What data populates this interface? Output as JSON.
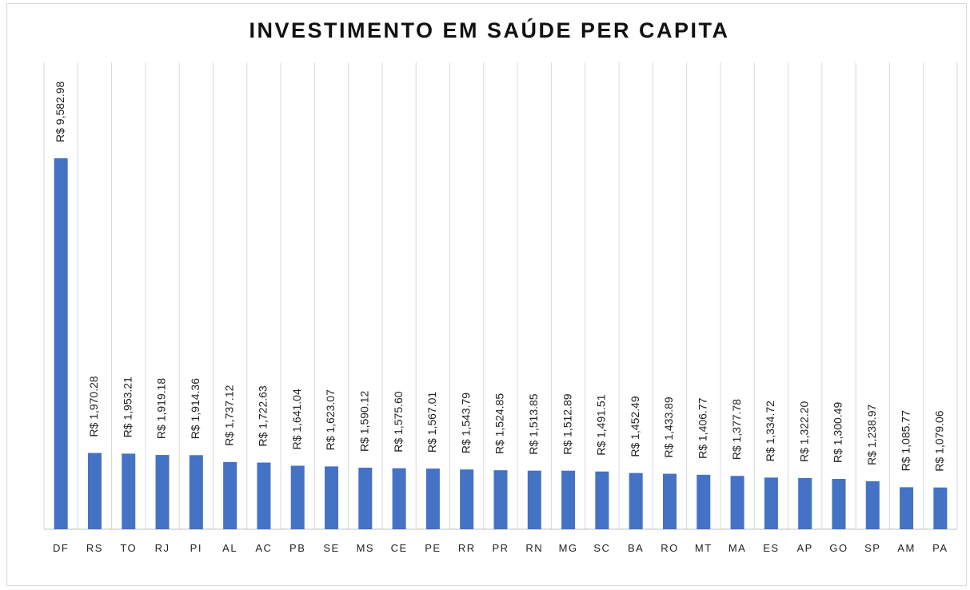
{
  "chart_data": {
    "type": "bar",
    "title": "INVESTIMENTO EM SAÚDE PER CAPITA",
    "categories": [
      "DF",
      "RS",
      "TO",
      "RJ",
      "PI",
      "AL",
      "AC",
      "PB",
      "SE",
      "MS",
      "CE",
      "PE",
      "RR",
      "PR",
      "RN",
      "MG",
      "SC",
      "BA",
      "RO",
      "MT",
      "MA",
      "ES",
      "AP",
      "GO",
      "SP",
      "AM",
      "PA"
    ],
    "values": [
      9582.98,
      1970.28,
      1953.21,
      1919.18,
      1914.36,
      1737.12,
      1722.63,
      1641.04,
      1623.07,
      1590.12,
      1575.6,
      1567.01,
      1543.79,
      1524.85,
      1513.85,
      1512.89,
      1491.51,
      1452.49,
      1433.89,
      1406.77,
      1377.78,
      1334.72,
      1322.2,
      1300.49,
      1238.97,
      1085.77,
      1079.06
    ],
    "value_labels": [
      "R$ 9,582.98",
      "R$ 1,970.28",
      "R$ 1,953.21",
      "R$ 1,919.18",
      "R$ 1,914.36",
      "R$ 1,737.12",
      "R$ 1,722.63",
      "R$ 1,641.04",
      "R$ 1,623.07",
      "R$ 1,590.12",
      "R$ 1,575.60",
      "R$ 1,567.01",
      "R$ 1,543.79",
      "R$ 1,524.85",
      "R$ 1,513.85",
      "R$ 1,512.89",
      "R$ 1,491.51",
      "R$ 1,452.49",
      "R$ 1,433.89",
      "R$ 1,406.77",
      "R$ 1,377.78",
      "R$ 1,334.72",
      "R$ 1,322.20",
      "R$ 1,300.49",
      "R$ 1,238.97",
      "R$ 1,085.77",
      "R$ 1,079.06"
    ],
    "color": "#4472c4",
    "grid": true
  }
}
